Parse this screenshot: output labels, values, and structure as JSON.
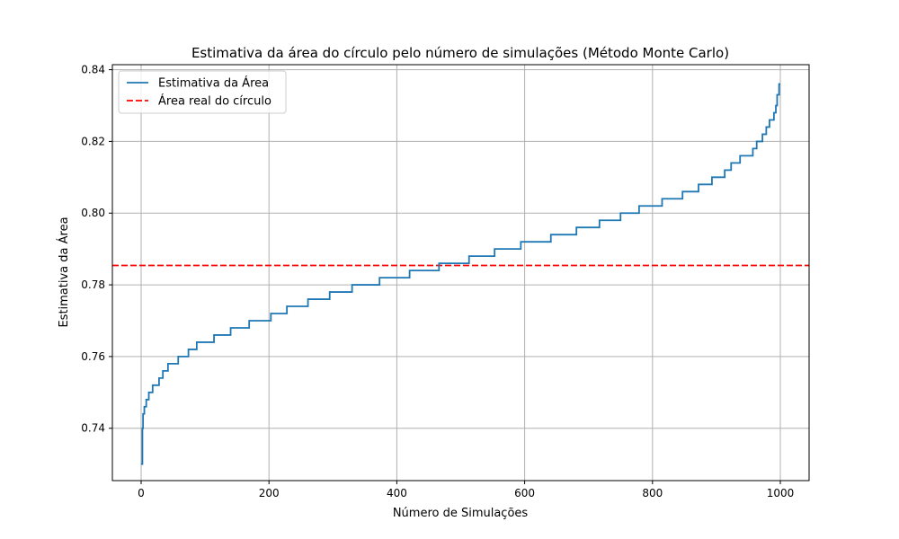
{
  "chart_data": {
    "type": "line",
    "title": "Estimativa da área do círculo pelo número de simulações (Método Monte Carlo)",
    "xlabel": "Número de Simulações",
    "ylabel": "Estimativa da Área",
    "xlim": [
      -45,
      1045
    ],
    "ylim": [
      0.7254,
      0.8414
    ],
    "xticks": [
      0,
      200,
      400,
      600,
      800,
      1000
    ],
    "xtick_labels": [
      "0",
      "200",
      "400",
      "600",
      "800",
      "1000"
    ],
    "yticks": [
      0.74,
      0.76,
      0.78,
      0.8,
      0.82,
      0.84
    ],
    "ytick_labels": [
      "0.74",
      "0.76",
      "0.78",
      "0.80",
      "0.82",
      "0.84"
    ],
    "grid": true,
    "legend_position": "top-left",
    "series": [
      {
        "name": "Estimativa da Área",
        "style": "step",
        "color": "#1f77b4",
        "x": [
          0,
          2,
          3,
          5,
          8,
          12,
          18,
          28,
          34,
          42,
          58,
          74,
          87,
          114,
          140,
          169,
          203,
          228,
          261,
          295,
          330,
          373,
          420,
          466,
          513,
          553,
          594,
          641,
          681,
          717,
          750,
          779,
          815,
          847,
          872,
          893,
          913,
          923,
          937,
          957,
          963,
          972,
          978,
          983,
          990,
          993,
          995,
          998,
          1000
        ],
        "values": [
          0.73,
          0.74,
          0.744,
          0.746,
          0.748,
          0.75,
          0.752,
          0.754,
          0.756,
          0.758,
          0.76,
          0.762,
          0.764,
          0.766,
          0.768,
          0.77,
          0.772,
          0.774,
          0.776,
          0.778,
          0.78,
          0.782,
          0.784,
          0.786,
          0.788,
          0.79,
          0.792,
          0.794,
          0.796,
          0.798,
          0.8,
          0.802,
          0.804,
          0.806,
          0.808,
          0.81,
          0.812,
          0.814,
          0.816,
          0.818,
          0.82,
          0.822,
          0.824,
          0.826,
          0.828,
          0.83,
          0.833,
          0.836,
          0.836
        ]
      },
      {
        "name": "Área real do círculo",
        "style": "hline-dashed",
        "color": "#ff0000",
        "y": 0.7854
      }
    ]
  }
}
